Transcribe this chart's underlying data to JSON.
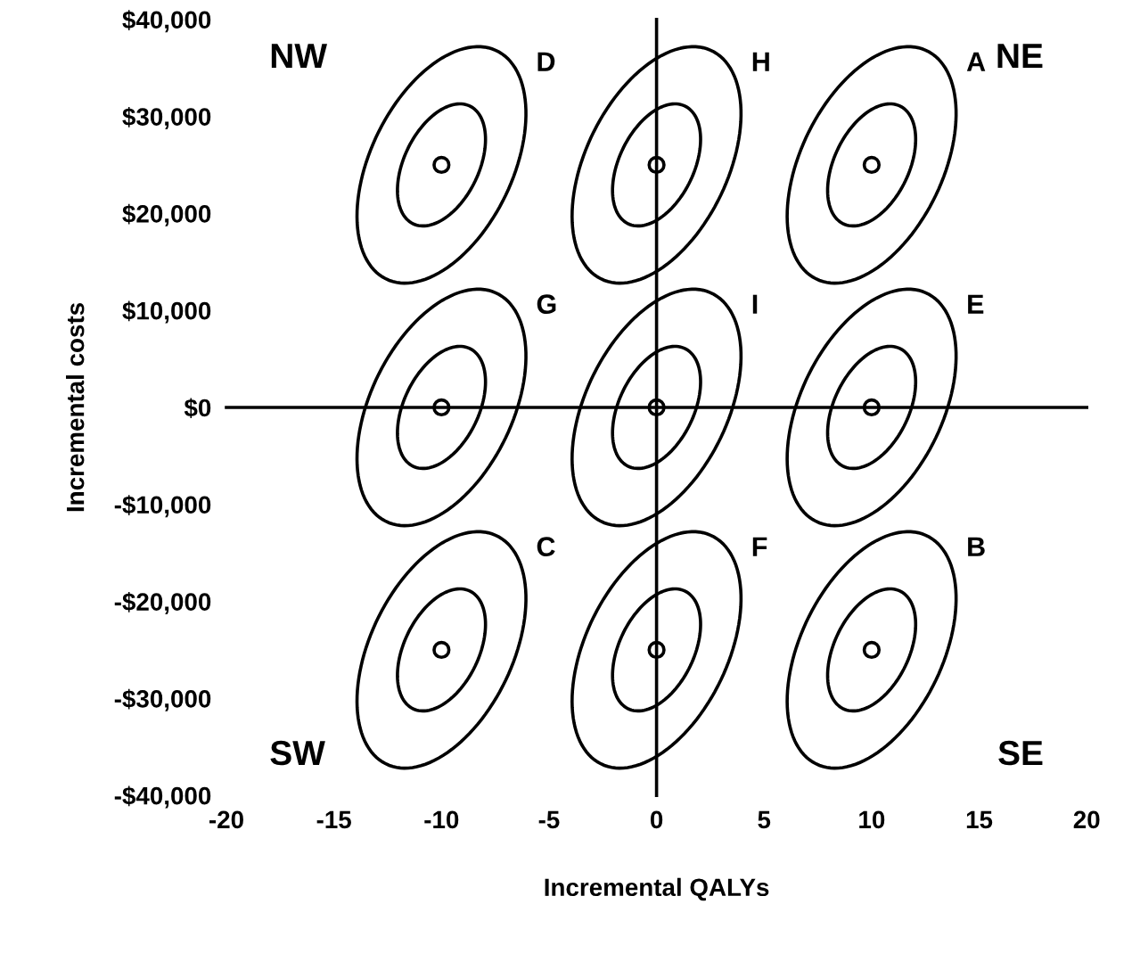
{
  "chart_data": {
    "type": "scatter",
    "xlabel": "Incremental QALYs",
    "ylabel": "Incremental costs",
    "series": [
      {
        "color": "#000000",
        "x": [
          -10,
          0,
          10,
          -10,
          0,
          10,
          -10,
          0,
          10
        ],
        "values": [
          25000,
          25000,
          25000,
          0,
          0,
          0,
          -25000,
          -25000,
          -25000
        ]
      }
    ],
    "marker": "circle",
    "xlim": [
      -20,
      20
    ],
    "xticks": [
      -20,
      -15,
      -10,
      -5,
      0,
      5,
      10,
      15,
      20
    ],
    "ylim": [
      -40000,
      40000
    ],
    "yticks": [
      {
        "value": -40000,
        "label": "-$40,000"
      },
      {
        "value": -30000,
        "label": "-$30,000"
      },
      {
        "value": -20000,
        "label": "-$20,000"
      },
      {
        "value": -10000,
        "label": "-$10,000"
      },
      {
        "value": 0,
        "label": "$0"
      },
      {
        "value": 10000,
        "label": "$10,000"
      },
      {
        "value": 20000,
        "label": "$20,000"
      },
      {
        "value": 30000,
        "label": "$30,000"
      },
      {
        "value": 40000,
        "label": "$40,000"
      }
    ],
    "annotations": [
      "NW",
      "NE",
      "SW",
      "SE",
      "D",
      "H",
      "A",
      "G",
      "I",
      "E",
      "C",
      "F",
      "B"
    ],
    "legend": false
  }
}
